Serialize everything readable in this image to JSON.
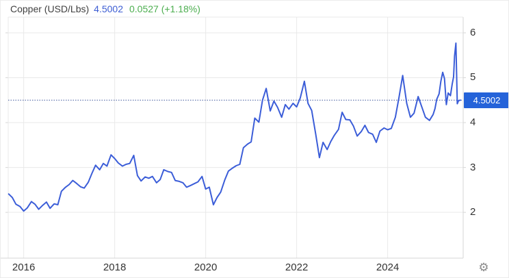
{
  "header": {
    "title": "Copper (USD/Lbs)",
    "last_value": "4.5002",
    "change": "0.0527 (+1.18%)"
  },
  "price_badge": {
    "label": "4.5002"
  },
  "icons": {
    "gear_glyph": "⚙"
  },
  "colors": {
    "background": "#ffffff",
    "line": "#3b5dd8",
    "badge_bg": "#2563d9",
    "badge_text": "#ffffff",
    "title_text": "#404040",
    "value_text": "#3c5dd3",
    "change_text": "#4cae4f",
    "axis_text": "#333333",
    "grid": "#e9e9e9",
    "axis_border": "#d6d6d6",
    "dotted_price_line": "#3f569b",
    "gear_icon": "#8a8a8a"
  },
  "chart_data": {
    "type": "line",
    "title": "Copper (USD/Lbs)",
    "ylabel": "USD/Lbs",
    "xlabel": "",
    "grid": true,
    "legend_position": "none",
    "y_axis_side": "right",
    "x_ticks": [
      2016,
      2018,
      2020,
      2022,
      2024
    ],
    "y_ticks": [
      2,
      3,
      4,
      5,
      6
    ],
    "xlim": [
      2015.66,
      2025.66
    ],
    "ylim": [
      0.98,
      6.35
    ],
    "current_price": 4.5002,
    "series": [
      {
        "name": "Copper",
        "color": "#3b5dd8",
        "points": [
          [
            2015.67,
            2.41
          ],
          [
            2015.75,
            2.33
          ],
          [
            2015.83,
            2.18
          ],
          [
            2015.92,
            2.13
          ],
          [
            2016.0,
            2.03
          ],
          [
            2016.08,
            2.1
          ],
          [
            2016.17,
            2.24
          ],
          [
            2016.25,
            2.18
          ],
          [
            2016.33,
            2.07
          ],
          [
            2016.42,
            2.16
          ],
          [
            2016.5,
            2.23
          ],
          [
            2016.58,
            2.09
          ],
          [
            2016.67,
            2.19
          ],
          [
            2016.75,
            2.17
          ],
          [
            2016.83,
            2.47
          ],
          [
            2016.92,
            2.56
          ],
          [
            2017.0,
            2.62
          ],
          [
            2017.08,
            2.71
          ],
          [
            2017.17,
            2.64
          ],
          [
            2017.25,
            2.57
          ],
          [
            2017.33,
            2.54
          ],
          [
            2017.42,
            2.67
          ],
          [
            2017.5,
            2.87
          ],
          [
            2017.58,
            3.05
          ],
          [
            2017.67,
            2.95
          ],
          [
            2017.75,
            3.09
          ],
          [
            2017.83,
            3.03
          ],
          [
            2017.92,
            3.28
          ],
          [
            2018.0,
            3.2
          ],
          [
            2018.08,
            3.1
          ],
          [
            2018.17,
            3.03
          ],
          [
            2018.25,
            3.07
          ],
          [
            2018.33,
            3.09
          ],
          [
            2018.42,
            3.27
          ],
          [
            2018.5,
            2.82
          ],
          [
            2018.58,
            2.7
          ],
          [
            2018.67,
            2.79
          ],
          [
            2018.75,
            2.76
          ],
          [
            2018.83,
            2.8
          ],
          [
            2018.92,
            2.66
          ],
          [
            2019.0,
            2.73
          ],
          [
            2019.08,
            2.95
          ],
          [
            2019.17,
            2.91
          ],
          [
            2019.25,
            2.89
          ],
          [
            2019.33,
            2.71
          ],
          [
            2019.42,
            2.69
          ],
          [
            2019.5,
            2.66
          ],
          [
            2019.58,
            2.56
          ],
          [
            2019.67,
            2.6
          ],
          [
            2019.75,
            2.64
          ],
          [
            2019.83,
            2.68
          ],
          [
            2019.92,
            2.8
          ],
          [
            2020.0,
            2.52
          ],
          [
            2020.08,
            2.56
          ],
          [
            2020.17,
            2.17
          ],
          [
            2020.25,
            2.33
          ],
          [
            2020.33,
            2.45
          ],
          [
            2020.42,
            2.72
          ],
          [
            2020.5,
            2.92
          ],
          [
            2020.58,
            2.98
          ],
          [
            2020.67,
            3.04
          ],
          [
            2020.75,
            3.07
          ],
          [
            2020.83,
            3.44
          ],
          [
            2020.92,
            3.52
          ],
          [
            2021.0,
            3.57
          ],
          [
            2021.08,
            4.1
          ],
          [
            2021.17,
            4.01
          ],
          [
            2021.25,
            4.5
          ],
          [
            2021.33,
            4.76
          ],
          [
            2021.42,
            4.26
          ],
          [
            2021.5,
            4.48
          ],
          [
            2021.58,
            4.34
          ],
          [
            2021.67,
            4.12
          ],
          [
            2021.75,
            4.4
          ],
          [
            2021.83,
            4.3
          ],
          [
            2021.92,
            4.43
          ],
          [
            2022.0,
            4.35
          ],
          [
            2022.08,
            4.55
          ],
          [
            2022.17,
            4.92
          ],
          [
            2022.25,
            4.43
          ],
          [
            2022.33,
            4.27
          ],
          [
            2022.42,
            3.74
          ],
          [
            2022.5,
            3.22
          ],
          [
            2022.58,
            3.56
          ],
          [
            2022.67,
            3.4
          ],
          [
            2022.75,
            3.58
          ],
          [
            2022.83,
            3.72
          ],
          [
            2022.92,
            3.85
          ],
          [
            2023.0,
            4.23
          ],
          [
            2023.08,
            4.07
          ],
          [
            2023.17,
            4.06
          ],
          [
            2023.25,
            3.92
          ],
          [
            2023.33,
            3.7
          ],
          [
            2023.42,
            3.8
          ],
          [
            2023.5,
            3.94
          ],
          [
            2023.58,
            3.78
          ],
          [
            2023.67,
            3.74
          ],
          [
            2023.75,
            3.56
          ],
          [
            2023.83,
            3.81
          ],
          [
            2023.92,
            3.88
          ],
          [
            2024.0,
            3.84
          ],
          [
            2024.08,
            3.87
          ],
          [
            2024.17,
            4.12
          ],
          [
            2024.25,
            4.56
          ],
          [
            2024.33,
            5.05
          ],
          [
            2024.42,
            4.43
          ],
          [
            2024.5,
            4.12
          ],
          [
            2024.58,
            4.21
          ],
          [
            2024.67,
            4.58
          ],
          [
            2024.75,
            4.35
          ],
          [
            2024.83,
            4.12
          ],
          [
            2024.92,
            4.05
          ],
          [
            2025.0,
            4.18
          ],
          [
            2025.04,
            4.31
          ],
          [
            2025.08,
            4.52
          ],
          [
            2025.13,
            4.64
          ],
          [
            2025.17,
            4.92
          ],
          [
            2025.21,
            5.12
          ],
          [
            2025.25,
            4.98
          ],
          [
            2025.29,
            4.4
          ],
          [
            2025.33,
            4.66
          ],
          [
            2025.38,
            4.6
          ],
          [
            2025.42,
            4.86
          ],
          [
            2025.45,
            5.02
          ],
          [
            2025.47,
            5.48
          ],
          [
            2025.5,
            5.77
          ],
          [
            2025.53,
            4.42
          ],
          [
            2025.56,
            4.49
          ],
          [
            2025.6,
            4.5
          ]
        ]
      }
    ]
  }
}
